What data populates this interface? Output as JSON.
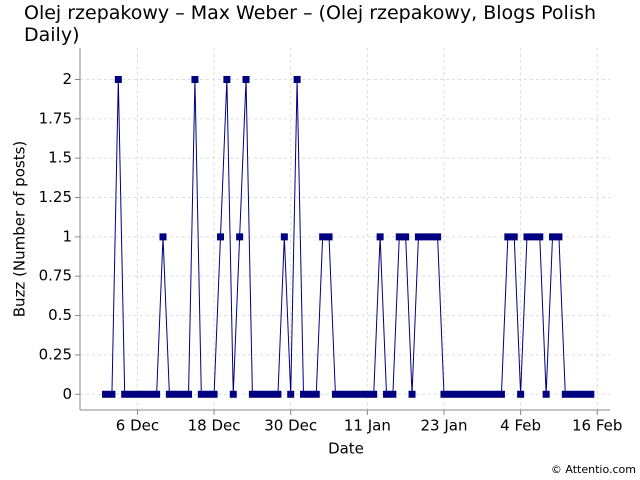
{
  "chart_data": {
    "type": "line",
    "title": "Olej rzepakowy – Max Weber – (Olej rzepakowy, Blogs Polish Daily)",
    "x_label": "Date",
    "y_label": "Buzz (Number of posts)",
    "credit": "© Attentio.com",
    "x": [
      "1 Dec",
      "2 Dec",
      "3 Dec",
      "4 Dec",
      "5 Dec",
      "6 Dec",
      "7 Dec",
      "8 Dec",
      "9 Dec",
      "10 Dec",
      "11 Dec",
      "12 Dec",
      "13 Dec",
      "14 Dec",
      "15 Dec",
      "16 Dec",
      "17 Dec",
      "18 Dec",
      "19 Dec",
      "20 Dec",
      "21 Dec",
      "22 Dec",
      "23 Dec",
      "24 Dec",
      "25 Dec",
      "26 Dec",
      "27 Dec",
      "28 Dec",
      "29 Dec",
      "30 Dec",
      "31 Dec",
      "1 Jan",
      "2 Jan",
      "3 Jan",
      "4 Jan",
      "5 Jan",
      "6 Jan",
      "7 Jan",
      "8 Jan",
      "9 Jan",
      "10 Jan",
      "11 Jan",
      "12 Jan",
      "13 Jan",
      "14 Jan",
      "15 Jan",
      "16 Jan",
      "17 Jan",
      "18 Jan",
      "19 Jan",
      "20 Jan",
      "21 Jan",
      "22 Jan",
      "23 Jan",
      "24 Jan",
      "25 Jan",
      "26 Jan",
      "27 Jan",
      "28 Jan",
      "29 Jan",
      "30 Jan",
      "31 Jan",
      "1 Feb",
      "2 Feb",
      "3 Feb",
      "4 Feb",
      "5 Feb",
      "6 Feb",
      "7 Feb",
      "8 Feb",
      "9 Feb",
      "10 Feb",
      "11 Feb",
      "12 Feb",
      "13 Feb",
      "14 Feb",
      "15 Feb"
    ],
    "values": [
      0,
      0,
      2,
      0,
      0,
      0,
      0,
      0,
      0,
      1,
      0,
      0,
      0,
      0,
      2,
      0,
      0,
      0,
      1,
      2,
      0,
      1,
      2,
      0,
      0,
      0,
      0,
      0,
      1,
      0,
      2,
      0,
      0,
      0,
      1,
      1,
      0,
      0,
      0,
      0,
      0,
      0,
      0,
      1,
      0,
      0,
      1,
      1,
      0,
      1,
      1,
      1,
      1,
      0,
      0,
      0,
      0,
      0,
      0,
      0,
      0,
      0,
      0,
      1,
      1,
      0,
      1,
      1,
      1,
      0,
      1,
      1,
      0,
      0,
      0,
      0,
      0
    ],
    "color": "#000080",
    "xlim": [
      "27 Nov",
      "18 Feb"
    ],
    "xticks": [
      "6 Dec",
      "18 Dec",
      "30 Dec",
      "11 Jan",
      "23 Jan",
      "4 Feb",
      "16 Feb"
    ],
    "ylim": [
      -0.1,
      2.2
    ],
    "yticks": [
      0,
      0.25,
      0.5,
      0.75,
      1,
      1.25,
      1.5,
      1.75,
      2
    ],
    "grid": true
  }
}
